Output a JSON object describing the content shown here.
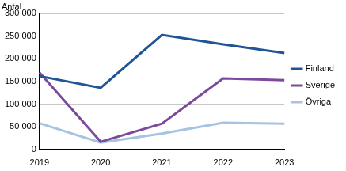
{
  "chart_data": {
    "type": "line",
    "y_label": "Antal",
    "categories": [
      "2019",
      "2020",
      "2021",
      "2022",
      "2023"
    ],
    "series": [
      {
        "name": "Finland",
        "color": "#1f5596",
        "values": [
          162000,
          136000,
          253000,
          232000,
          213000
        ]
      },
      {
        "name": "Sverige",
        "color": "#7b4a9c",
        "values": [
          170000,
          17000,
          57000,
          157000,
          153000
        ]
      },
      {
        "name": "Övriga",
        "color": "#a7c3e2",
        "values": [
          58000,
          15000,
          35000,
          59000,
          57000
        ]
      }
    ],
    "ylim": [
      0,
      300000
    ],
    "yticks": [
      0,
      {
        "value": 50000,
        "label": "50 000"
      },
      {
        "value": 100000,
        "label": "100 000"
      },
      {
        "value": 150000,
        "label": "150 000"
      },
      {
        "value": 200000,
        "label": "200 000"
      },
      {
        "value": 250000,
        "label": "250 000"
      },
      {
        "value": 300000,
        "label": "300 000"
      }
    ],
    "grid": true,
    "legend": "right"
  }
}
